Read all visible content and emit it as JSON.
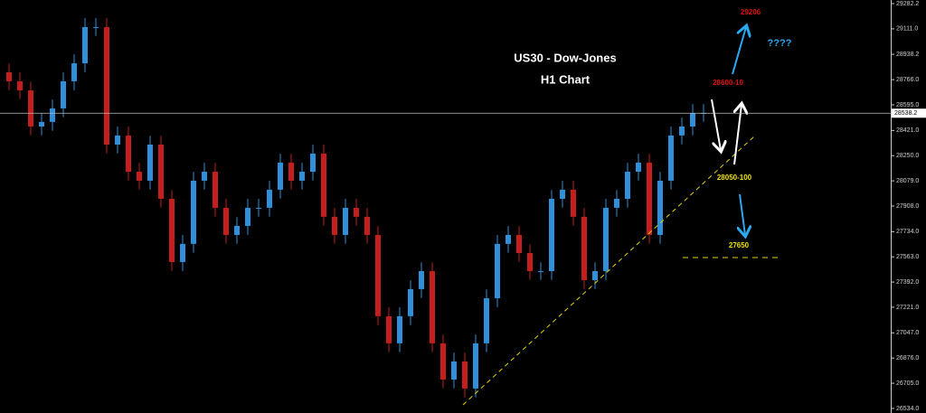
{
  "chart_data": {
    "type": "candlestick",
    "title": "US30 - Dow-Jones",
    "subtitle": "H1 Chart",
    "up_color": "#2f8fd8",
    "down_color": "#c41e1e",
    "ylim": [
      26503,
      29306.7
    ],
    "yticks": [
      {
        "value": 29282.2,
        "label": "29282.2"
      },
      {
        "value": 29111.0,
        "label": "29111.0"
      },
      {
        "value": 28938.2,
        "label": "28938.2"
      },
      {
        "value": 28766.0,
        "label": "28766.0"
      },
      {
        "value": 28595.0,
        "label": "28595.0"
      },
      {
        "value": 28421.0,
        "label": "28421.0"
      },
      {
        "value": 28250.0,
        "label": "28250.0"
      },
      {
        "value": 28079.0,
        "label": "28079.0"
      },
      {
        "value": 27908.0,
        "label": "27908.0"
      },
      {
        "value": 27734.0,
        "label": "27734.0"
      },
      {
        "value": 27563.0,
        "label": "27563.0"
      },
      {
        "value": 27392.0,
        "label": "27392.0"
      },
      {
        "value": 27221.0,
        "label": "27221.0"
      },
      {
        "value": 27047.0,
        "label": "27047.0"
      },
      {
        "value": 26876.0,
        "label": "26876.0"
      },
      {
        "value": 26705.0,
        "label": "26705.0"
      },
      {
        "value": 26534.0,
        "label": "26534.0"
      }
    ],
    "current_price": 28538.2,
    "open": [
      28816,
      28755,
      28693,
      28448,
      28479,
      28571,
      28755,
      28877,
      29123,
      29123,
      28325,
      28387,
      28141,
      28080,
      28325,
      27957,
      27528,
      27651,
      28080,
      28141,
      27896,
      27712,
      27773,
      27896,
      27896,
      28019,
      28203,
      28080,
      28141,
      28264,
      27835,
      27712,
      27896,
      27835,
      27712,
      27160,
      26976,
      27160,
      27344,
      27466,
      26976,
      26730,
      26853,
      26669,
      26976,
      27282,
      27651,
      27712,
      27589,
      27466,
      27466,
      27957,
      28019,
      27835,
      27405,
      27466,
      27896,
      27957,
      28141,
      28203,
      27712,
      28080,
      28387,
      28448,
      28540
    ],
    "high": [
      28876,
      28815,
      28753,
      28539,
      28631,
      28815,
      28937,
      29183,
      29183,
      29183,
      28447,
      28447,
      28201,
      28385,
      28385,
      28017,
      27711,
      28140,
      28201,
      28201,
      27956,
      27833,
      27956,
      27956,
      28079,
      28263,
      28263,
      28201,
      28324,
      28324,
      27895,
      27956,
      27956,
      27895,
      27772,
      27220,
      27220,
      27404,
      27526,
      27526,
      27036,
      26913,
      26913,
      27036,
      27342,
      27711,
      27772,
      27772,
      27649,
      27526,
      28017,
      28079,
      28079,
      27895,
      27526,
      27956,
      28017,
      28201,
      28263,
      28263,
      28140,
      28447,
      28508,
      28600,
      28600
    ],
    "low": [
      28695,
      28633,
      28388,
      28388,
      28419,
      28511,
      28695,
      28817,
      29063,
      28265,
      28265,
      28081,
      28020,
      28020,
      27897,
      27468,
      27468,
      27591,
      28020,
      27836,
      27652,
      27652,
      27713,
      27836,
      27836,
      27959,
      28020,
      28020,
      28081,
      27775,
      27652,
      27652,
      27775,
      27652,
      27100,
      26916,
      26916,
      27100,
      27284,
      26916,
      26670,
      26670,
      26609,
      26609,
      26916,
      27222,
      27591,
      27529,
      27406,
      27406,
      27406,
      27897,
      27775,
      27345,
      27345,
      27406,
      27836,
      27897,
      28081,
      27652,
      27652,
      28020,
      28327,
      28388,
      28480
    ],
    "close": [
      28755,
      28693,
      28448,
      28479,
      28571,
      28755,
      28877,
      29123,
      29123,
      28325,
      28387,
      28141,
      28080,
      28325,
      27957,
      27528,
      27651,
      28080,
      28141,
      27896,
      27712,
      27773,
      27896,
      27896,
      28019,
      28203,
      28080,
      28141,
      28264,
      27835,
      27712,
      27896,
      27835,
      27712,
      27160,
      26976,
      27160,
      27344,
      27466,
      26976,
      26730,
      26853,
      26669,
      26976,
      27282,
      27651,
      27712,
      27589,
      27466,
      27466,
      27957,
      28019,
      27835,
      27405,
      27466,
      27896,
      27957,
      28141,
      28203,
      27712,
      28080,
      28387,
      28448,
      28540,
      28540
    ],
    "annotations": [
      "29206",
      "????",
      "28600-10",
      "28050-100",
      "27650"
    ]
  }
}
